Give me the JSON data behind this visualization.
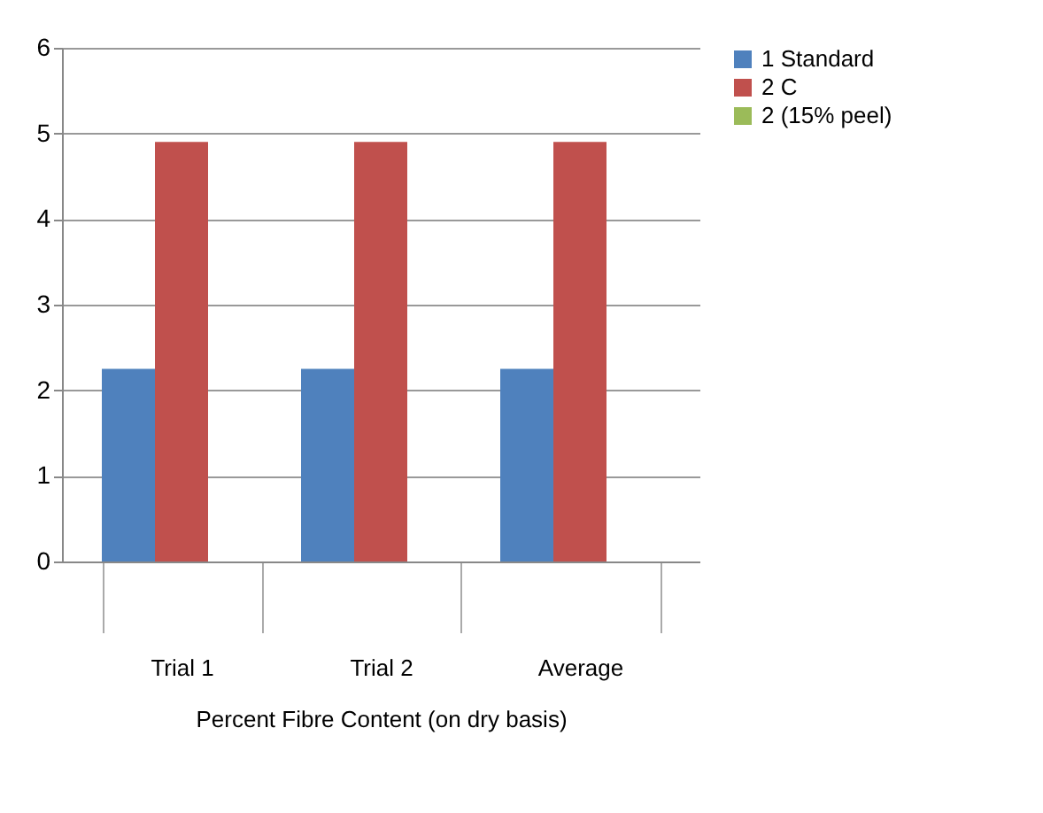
{
  "chart_data": {
    "type": "bar",
    "xlabel": "Percent Fibre Content (on dry basis)",
    "categories": [
      "Trial 1",
      "Trial 2",
      "Average"
    ],
    "series": [
      {
        "name": "1 Standard",
        "color": "#4f81bd",
        "values": [
          2.25,
          2.25,
          2.25
        ]
      },
      {
        "name": "2 C",
        "color": "#c0504d",
        "values": [
          4.9,
          4.9,
          4.9
        ]
      },
      {
        "name": "2 (15% peel)",
        "color": "#9bbb59",
        "values": [
          null,
          null,
          null
        ]
      }
    ],
    "ylim": [
      0,
      6
    ],
    "yticks": [
      0,
      1,
      2,
      3,
      4,
      5,
      6
    ],
    "grid": "y",
    "legend": "right"
  }
}
